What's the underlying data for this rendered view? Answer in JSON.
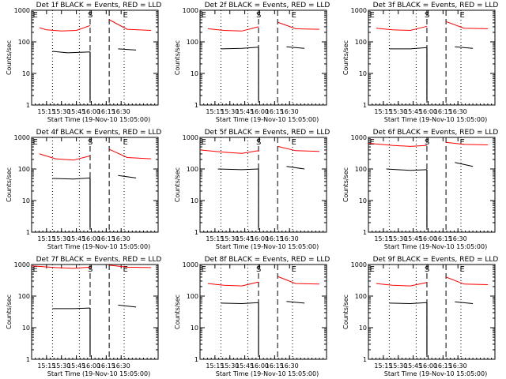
{
  "chart_data": [
    {
      "type": "line",
      "title": "Det 1f BLACK = Events, RED = LLD",
      "xlabel": "Start Time (19-Nov-10 15:05:00)",
      "ylabel": "Counts/sec",
      "yscale": "log",
      "ylim": [
        1,
        1000
      ],
      "yticks": [
        "1",
        "10",
        "100",
        "1000"
      ],
      "xticks": [
        "15:15",
        "15:30",
        "15:45",
        "16:00",
        "16:15",
        "16:30"
      ],
      "markers": [
        "E",
        "S",
        "E"
      ],
      "series": [
        {
          "color": "#ff0000",
          "segments": [
            {
              "t": [
                15.13,
                15.25,
                15.5,
                15.75,
                15.98
              ],
              "y": [
                280,
                240,
                220,
                230,
                330
              ]
            },
            {
              "t": [
                16.3,
                16.6,
                17
              ],
              "y": [
                500,
                250,
                230
              ]
            }
          ]
        },
        {
          "color": "#000000",
          "segments": [
            {
              "t": [
                15.35,
                15.6,
                15.98
              ],
              "y": [
                50,
                45,
                48
              ]
            },
            {
              "t": [
                16.45,
                16.75
              ],
              "y": [
                60,
                55
              ]
            }
          ]
        }
      ]
    },
    {
      "type": "line",
      "title": "Det 2f BLACK = Events, RED = LLD",
      "xlabel": "Start Time (19-Nov-10 15:05:00)",
      "ylabel": "Counts/sec",
      "yscale": "log",
      "ylim": [
        1,
        1000
      ],
      "yticks": [
        "1",
        "10",
        "100",
        "1000"
      ],
      "xticks": [
        "15:15",
        "15:30",
        "15:45",
        "16:00",
        "16:15",
        "16:30"
      ],
      "markers": [
        "E",
        "S",
        "E"
      ],
      "series": [
        {
          "color": "#ff0000",
          "segments": [
            {
              "t": [
                15.13,
                15.4,
                15.7,
                15.98
              ],
              "y": [
                260,
                230,
                220,
                300
              ]
            },
            {
              "t": [
                16.3,
                16.6,
                17
              ],
              "y": [
                420,
                260,
                250
              ]
            }
          ]
        },
        {
          "color": "#000000",
          "segments": [
            {
              "t": [
                15.35,
                15.7,
                15.98
              ],
              "y": [
                60,
                62,
                68
              ]
            },
            {
              "t": [
                16.45,
                16.75
              ],
              "y": [
                70,
                62
              ]
            }
          ]
        }
      ]
    },
    {
      "type": "line",
      "title": "Det 3f BLACK = Events, RED = LLD",
      "xlabel": "Start Time (19-Nov-10 15:05:00)",
      "ylabel": "Counts/sec",
      "yscale": "log",
      "ylim": [
        1,
        1000
      ],
      "yticks": [
        "1",
        "10",
        "100",
        "1000"
      ],
      "xticks": [
        "15:15",
        "15:30",
        "15:45",
        "16:00",
        "16:15",
        "16:30"
      ],
      "markers": [
        "E",
        "S",
        "E"
      ],
      "series": [
        {
          "color": "#ff0000",
          "segments": [
            {
              "t": [
                15.13,
                15.4,
                15.7,
                15.98
              ],
              "y": [
                270,
                240,
                230,
                310
              ]
            },
            {
              "t": [
                16.3,
                16.6,
                17
              ],
              "y": [
                440,
                270,
                260
              ]
            }
          ]
        },
        {
          "color": "#000000",
          "segments": [
            {
              "t": [
                15.35,
                15.7,
                15.98
              ],
              "y": [
                60,
                60,
                66
              ]
            },
            {
              "t": [
                16.45,
                16.75
              ],
              "y": [
                70,
                62
              ]
            }
          ]
        }
      ]
    },
    {
      "type": "line",
      "title": "Det 4f BLACK = Events, RED = LLD",
      "xlabel": "Start Time (19-Nov-10 15:05:00)",
      "ylabel": "Counts/sec",
      "yscale": "log",
      "ylim": [
        1,
        1000
      ],
      "yticks": [
        "1",
        "10",
        "100",
        "1000"
      ],
      "xticks": [
        "15:15",
        "15:30",
        "15:45",
        "16:00",
        "16:15",
        "16:30"
      ],
      "markers": [
        "E",
        "S",
        "E"
      ],
      "series": [
        {
          "color": "#ff0000",
          "segments": [
            {
              "t": [
                15.13,
                15.4,
                15.7,
                15.98
              ],
              "y": [
                300,
                210,
                190,
                260
              ]
            },
            {
              "t": [
                16.3,
                16.6,
                17
              ],
              "y": [
                420,
                230,
                210
              ]
            }
          ]
        },
        {
          "color": "#000000",
          "segments": [
            {
              "t": [
                15.35,
                15.7,
                15.98
              ],
              "y": [
                50,
                48,
                52
              ]
            },
            {
              "t": [
                16.45,
                16.75
              ],
              "y": [
                62,
                52
              ]
            }
          ]
        }
      ]
    },
    {
      "type": "line",
      "title": "Det 5f BLACK = Events, RED = LLD",
      "xlabel": "Start Time (19-Nov-10 15:05:00)",
      "ylabel": "Counts/sec",
      "yscale": "log",
      "ylim": [
        1,
        1000
      ],
      "yticks": [
        "1",
        "10",
        "100",
        "1000"
      ],
      "xticks": [
        "15:15",
        "15:30",
        "15:45",
        "16:00",
        "16:15",
        "16:30"
      ],
      "markers": [
        "E",
        "S",
        "E"
      ],
      "series": [
        {
          "color": "#ff0000",
          "segments": [
            {
              "t": [
                15.0,
                15.4,
                15.7,
                15.98
              ],
              "y": [
                400,
                340,
                310,
                380
              ]
            },
            {
              "t": [
                16.3,
                16.6,
                17
              ],
              "y": [
                520,
                380,
                360
              ]
            }
          ]
        },
        {
          "color": "#000000",
          "segments": [
            {
              "t": [
                15.3,
                15.7,
                15.98
              ],
              "y": [
                100,
                95,
                100
              ]
            },
            {
              "t": [
                16.45,
                16.75
              ],
              "y": [
                120,
                100
              ]
            }
          ]
        }
      ]
    },
    {
      "type": "line",
      "title": "Det 6f BLACK = Events, RED = LLD",
      "xlabel": "Start Time (19-Nov-10 15:05:00)",
      "ylabel": "Counts/sec",
      "yscale": "log",
      "ylim": [
        1,
        1000
      ],
      "yticks": [
        "1",
        "10",
        "100",
        "1000"
      ],
      "xticks": [
        "15:15",
        "15:30",
        "15:45",
        "16:00",
        "16:15",
        "16:30"
      ],
      "markers": [
        "E",
        "S",
        "E"
      ],
      "series": [
        {
          "color": "#ff0000",
          "segments": [
            {
              "t": [
                15.0,
                15.4,
                15.7,
                15.98
              ],
              "y": [
                650,
                560,
                520,
                560
              ]
            },
            {
              "t": [
                16.3,
                16.6,
                17
              ],
              "y": [
                700,
                600,
                580
              ]
            }
          ]
        },
        {
          "color": "#000000",
          "segments": [
            {
              "t": [
                15.3,
                15.7,
                15.98
              ],
              "y": [
                100,
                90,
                95
              ]
            },
            {
              "t": [
                16.45,
                16.75
              ],
              "y": [
                160,
                120
              ]
            }
          ]
        }
      ]
    },
    {
      "type": "line",
      "title": "Det 7f BLACK = Events, RED = LLD",
      "xlabel": "Start Time (19-Nov-10 15:05:00)",
      "ylabel": "Counts/sec",
      "yscale": "log",
      "ylim": [
        1,
        1000
      ],
      "yticks": [
        "1",
        "10",
        "100",
        "1000"
      ],
      "xticks": [
        "15:15",
        "15:30",
        "15:45",
        "16:00",
        "16:15",
        "16:30"
      ],
      "markers": [
        "E",
        "S",
        "E"
      ],
      "series": [
        {
          "color": "#ff0000",
          "segments": [
            {
              "t": [
                15.0,
                15.4,
                15.7,
                15.98
              ],
              "y": [
                900,
                800,
                760,
                820
              ]
            },
            {
              "t": [
                16.3,
                16.6,
                17
              ],
              "y": [
                950,
                820,
                800
              ]
            }
          ]
        },
        {
          "color": "#000000",
          "segments": [
            {
              "t": [
                15.35,
                15.7,
                15.98
              ],
              "y": [
                40,
                40,
                42
              ]
            },
            {
              "t": [
                16.45,
                16.75
              ],
              "y": [
                52,
                45
              ]
            }
          ]
        }
      ]
    },
    {
      "type": "line",
      "title": "Det 8f BLACK = Events, RED = LLD",
      "xlabel": "Start Time (19-Nov-10 15:05:00)",
      "ylabel": "Counts/sec",
      "yscale": "log",
      "ylim": [
        1,
        1000
      ],
      "yticks": [
        "1",
        "10",
        "100",
        "1000"
      ],
      "xticks": [
        "15:15",
        "15:30",
        "15:45",
        "16:00",
        "16:15",
        "16:30"
      ],
      "markers": [
        "E",
        "S",
        "E"
      ],
      "series": [
        {
          "color": "#ff0000",
          "segments": [
            {
              "t": [
                15.13,
                15.4,
                15.7,
                15.98
              ],
              "y": [
                250,
                220,
                210,
                280
              ]
            },
            {
              "t": [
                16.3,
                16.6,
                17
              ],
              "y": [
                420,
                250,
                240
              ]
            }
          ]
        },
        {
          "color": "#000000",
          "segments": [
            {
              "t": [
                15.35,
                15.7,
                15.98
              ],
              "y": [
                60,
                58,
                62
              ]
            },
            {
              "t": [
                16.45,
                16.75
              ],
              "y": [
                68,
                60
              ]
            }
          ]
        }
      ]
    },
    {
      "type": "line",
      "title": "Det 9f BLACK = Events, RED = LLD",
      "xlabel": "Start Time (19-Nov-10 15:05:00)",
      "ylabel": "Counts/sec",
      "yscale": "log",
      "ylim": [
        1,
        1000
      ],
      "yticks": [
        "1",
        "10",
        "100",
        "1000"
      ],
      "xticks": [
        "15:15",
        "15:30",
        "15:45",
        "16:00",
        "16:15",
        "16:30"
      ],
      "markers": [
        "E",
        "S",
        "E"
      ],
      "series": [
        {
          "color": "#ff0000",
          "segments": [
            {
              "t": [
                15.13,
                15.4,
                15.7,
                15.98
              ],
              "y": [
                250,
                220,
                210,
                270
              ]
            },
            {
              "t": [
                16.3,
                16.6,
                17
              ],
              "y": [
                400,
                240,
                230
              ]
            }
          ]
        },
        {
          "color": "#000000",
          "segments": [
            {
              "t": [
                15.35,
                15.7,
                15.98
              ],
              "y": [
                60,
                58,
                62
              ]
            },
            {
              "t": [
                16.45,
                16.75
              ],
              "y": [
                66,
                58
              ]
            }
          ]
        }
      ]
    }
  ]
}
